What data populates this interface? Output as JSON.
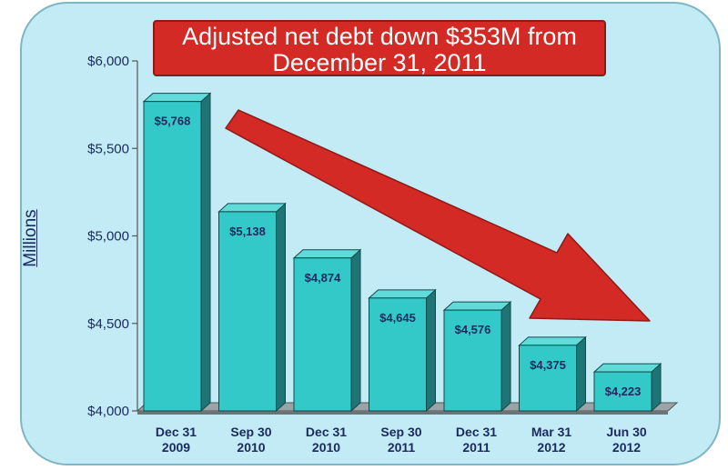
{
  "chart_data": {
    "type": "bar",
    "title": "Adjusted net debt down $353M from December 31, 2011",
    "title_lines": [
      "Adjusted net debt down $353M from",
      "December 31, 2011"
    ],
    "ylabel": "Millions",
    "categories": [
      [
        "Dec 31",
        "2009"
      ],
      [
        "Sep 30",
        "2010"
      ],
      [
        "Dec 31",
        "2010"
      ],
      [
        "Sep 30",
        "2011"
      ],
      [
        "Dec 31",
        "2011"
      ],
      [
        "Mar 31",
        "2012"
      ],
      [
        "Jun 30",
        "2012"
      ]
    ],
    "values": [
      5768,
      5138,
      4874,
      4645,
      4576,
      4375,
      4223
    ],
    "value_labels": [
      "$5,768",
      "$5,138",
      "$4,874",
      "$4,645",
      "$4,576",
      "$4,375",
      "$4,223"
    ],
    "ylim": [
      4000,
      6000
    ],
    "yticks": [
      4000,
      4500,
      5000,
      5500,
      6000
    ],
    "ytick_labels": [
      "$4,000",
      "$4,500",
      "$5,000",
      "$5,500",
      "$6,000"
    ],
    "grid": false,
    "legend": "none",
    "annotation": "downward-trend-arrow"
  },
  "colors": {
    "background": "#c3ebf5",
    "bar_front": "#34c9c9",
    "bar_side": "#1f7575",
    "bar_top": "#61dada",
    "title_box": "#d32a26",
    "arrow": "#d32a26",
    "text": "#1a2a5e"
  }
}
